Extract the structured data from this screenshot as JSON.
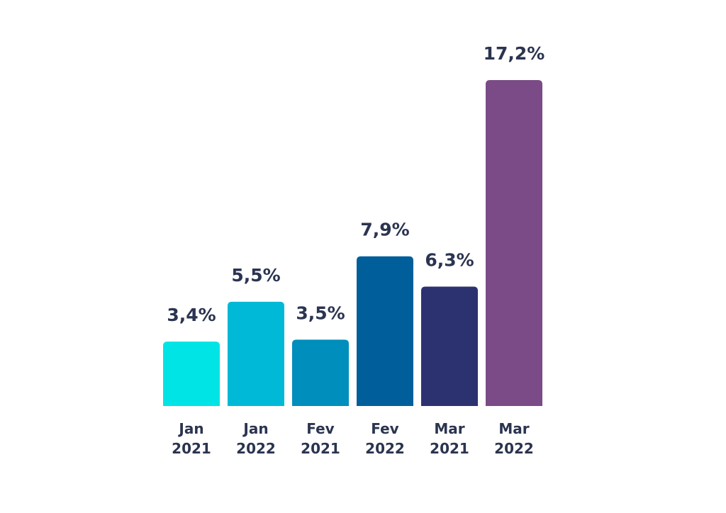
{
  "chart_data": {
    "type": "bar",
    "categories": [
      [
        "Jan",
        "2021"
      ],
      [
        "Jan",
        "2022"
      ],
      [
        "Fev",
        "2021"
      ],
      [
        "Fev",
        "2022"
      ],
      [
        "Mar",
        "2021"
      ],
      [
        "Mar",
        "2022"
      ]
    ],
    "values": [
      3.4,
      5.5,
      3.5,
      7.9,
      6.3,
      17.2
    ],
    "value_labels": [
      "3,4%",
      "5,5%",
      "3,5%",
      "7,9%",
      "6,3%",
      "17,2%"
    ],
    "colors": [
      "#00e4e6",
      "#00b9d6",
      "#008ebc",
      "#005f9b",
      "#2c3270",
      "#7a4b86"
    ],
    "title": "",
    "xlabel": "",
    "ylabel": "",
    "ylim": [
      0,
      17.2
    ],
    "grid": false,
    "legend": "none",
    "text_color": "#2b3450"
  }
}
